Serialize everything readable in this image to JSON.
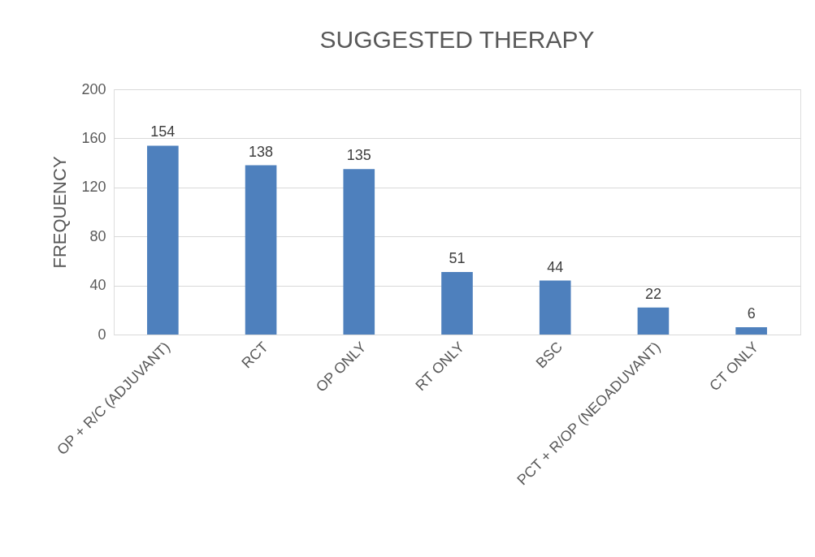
{
  "chart_data": {
    "type": "bar",
    "title": "SUGGESTED THERAPY",
    "ylabel": "FREQUENCY",
    "categories": [
      "OP + R/C (ADJUVANT)",
      "RCT",
      "OP ONLY",
      "RT ONLY",
      "BSC",
      "PCT + R/OP (NEOADUVANT)",
      "CT ONLY"
    ],
    "values": [
      154,
      138,
      135,
      51,
      44,
      22,
      6
    ],
    "color": "#4e80bd",
    "ylim": [
      0,
      200
    ],
    "yticks": [
      0,
      40,
      80,
      120,
      160,
      200
    ],
    "grid": "y",
    "data_labels": true
  }
}
